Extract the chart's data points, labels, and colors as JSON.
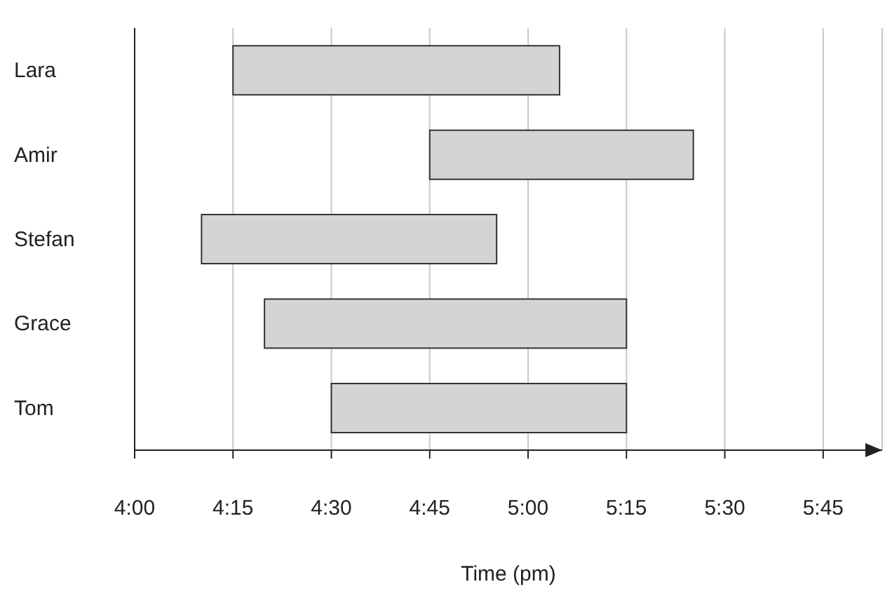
{
  "chart_data": {
    "type": "bar",
    "orientation": "horizontal",
    "xlabel": "Time (pm)",
    "categories": [
      "Lara",
      "Amir",
      "Stefan",
      "Grace",
      "Tom"
    ],
    "base": [
      4.25,
      4.75,
      4.17,
      4.33,
      4.5
    ],
    "values": [
      0.83,
      0.67,
      0.75,
      0.92,
      0.75
    ],
    "color": "#d4d4d4",
    "xlim": [
      4,
      5.9
    ],
    "xticks": [
      {
        "value": 4,
        "label": "4:00"
      },
      {
        "value": 4.25,
        "label": "4:15"
      },
      {
        "value": 4.5,
        "label": "4:30"
      },
      {
        "value": 4.75,
        "label": "4:45"
      },
      {
        "value": 5,
        "label": "5:00"
      },
      {
        "value": 5.25,
        "label": "5:15"
      },
      {
        "value": 5.5,
        "label": "5:30"
      },
      {
        "value": 5.75,
        "label": "5:45"
      }
    ],
    "grid": "x"
  }
}
